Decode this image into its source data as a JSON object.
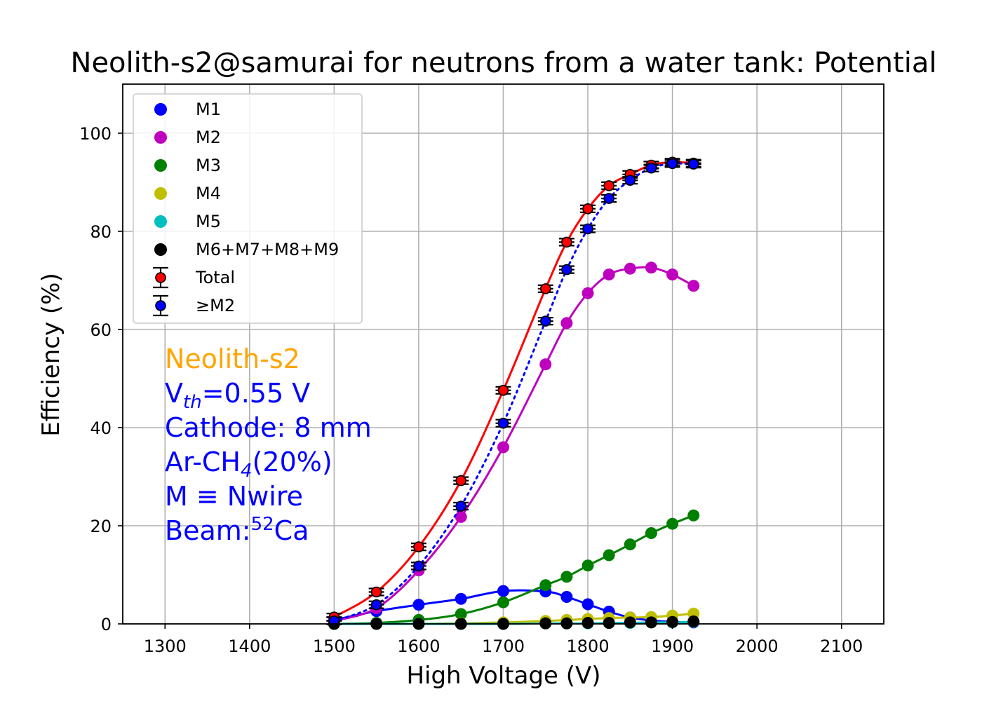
{
  "chart_data": {
    "type": "line",
    "title": "Neolith-s2@samurai for neutrons from a water tank: Potential",
    "xlabel": "High Voltage (V)",
    "ylabel": "Efficiency (%)",
    "xlim": [
      1250,
      2150
    ],
    "ylim": [
      0,
      110
    ],
    "xticks": [
      1300,
      1400,
      1500,
      1600,
      1700,
      1800,
      1900,
      2000,
      2100
    ],
    "yticks": [
      0,
      20,
      40,
      60,
      80,
      100
    ],
    "grid": true,
    "legend_position": "top-left",
    "x": [
      1500,
      1550,
      1600,
      1650,
      1700,
      1750,
      1775,
      1800,
      1825,
      1850,
      1875,
      1900,
      1925
    ],
    "series": [
      {
        "name": "M1",
        "color": "#0000ff",
        "marker": "dot",
        "line": "solid",
        "values": [
          0.8,
          2.6,
          3.9,
          5.1,
          6.7,
          6.6,
          5.5,
          4.0,
          2.5,
          1.3,
          0.7,
          0.4,
          0.3
        ]
      },
      {
        "name": "M2",
        "color": "#bf00bf",
        "marker": "dot",
        "line": "solid",
        "values": [
          0.6,
          3.2,
          10.9,
          21.8,
          36.0,
          52.9,
          61.3,
          67.4,
          71.2,
          72.4,
          72.6,
          71.2,
          68.9
        ]
      },
      {
        "name": "M3",
        "color": "#008000",
        "marker": "dot",
        "line": "solid",
        "values": [
          0.0,
          0.2,
          0.8,
          2.0,
          4.4,
          7.9,
          9.6,
          11.9,
          14.0,
          16.2,
          18.5,
          20.4,
          22.1
        ]
      },
      {
        "name": "M4",
        "color": "#bfbf00",
        "marker": "dot",
        "line": "solid",
        "values": [
          0.0,
          0.0,
          0.0,
          0.1,
          0.3,
          0.6,
          0.8,
          1.0,
          1.2,
          1.3,
          1.4,
          1.7,
          2.1
        ]
      },
      {
        "name": "M5",
        "color": "#00bfbf",
        "marker": "dot",
        "line": "solid",
        "values": [
          0.0,
          0.0,
          0.0,
          0.0,
          0.0,
          0.1,
          0.1,
          0.1,
          0.2,
          0.2,
          0.3,
          0.3,
          0.4
        ]
      },
      {
        "name": "M6+M7+M8+M9",
        "color": "#000000",
        "marker": "dot",
        "line": "none",
        "values": [
          0.0,
          0.0,
          0.0,
          0.0,
          0.0,
          0.1,
          0.1,
          0.2,
          0.2,
          0.3,
          0.3,
          0.4,
          0.5
        ]
      },
      {
        "name": "Total",
        "color": "#ff0000",
        "marker": "dot-edge",
        "line": "solid",
        "errorbars": true,
        "values": [
          1.4,
          6.5,
          15.7,
          29.2,
          47.6,
          68.3,
          77.8,
          84.6,
          89.3,
          91.6,
          93.5,
          94.1,
          93.9
        ]
      },
      {
        "name": "≥M2",
        "color": "#0000ff",
        "marker": "dot-edge",
        "line": "dotted",
        "errorbars": true,
        "values": [
          0.6,
          3.9,
          11.8,
          24.0,
          40.9,
          61.7,
          72.2,
          80.5,
          86.7,
          90.4,
          92.9,
          93.8,
          93.7
        ]
      }
    ],
    "annotations": [
      {
        "text": "Neolith-s2",
        "color": "#ffa500"
      },
      {
        "text": "V",
        "sub": "th",
        "after": "=0.55 V",
        "color": "#0000ff"
      },
      {
        "text": "Cathode: 8 mm",
        "color": "#0000ff"
      },
      {
        "text": "Ar-CH",
        "sub": "4",
        "after": "(20%)",
        "color": "#0000ff"
      },
      {
        "text": "M ≡ Nwire",
        "color": "#0000ff"
      },
      {
        "text": "Beam:",
        "sup": "52",
        "after": "Ca",
        "color": "#0000ff"
      }
    ]
  }
}
